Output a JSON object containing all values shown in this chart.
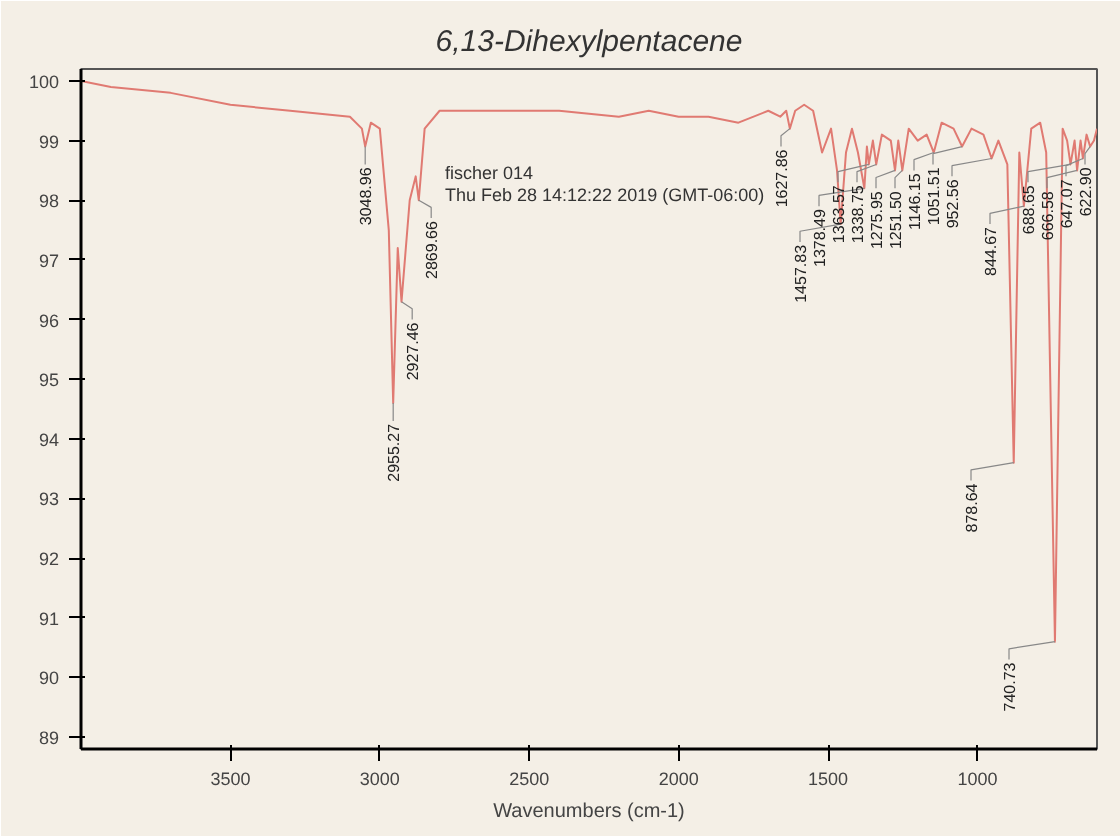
{
  "chart_data": {
    "type": "line",
    "title": "6,13-Dihexylpentacene",
    "xlabel": "Wavenumbers (cm-1)",
    "xlim": [
      4000,
      600
    ],
    "ylim": [
      88.8,
      100.2
    ],
    "xticks": [
      3500,
      3000,
      2500,
      2000,
      1500,
      1000
    ],
    "yticks": [
      89,
      90,
      91,
      92,
      93,
      94,
      95,
      96,
      97,
      98,
      99,
      100
    ],
    "grid": false,
    "marker": "none",
    "line_style": "solid",
    "series": [
      {
        "color": "#e07a72",
        "x": [
          4000,
          3900,
          3700,
          3500,
          3300,
          3100,
          3060,
          3048.96,
          3030,
          3000,
          2970,
          2955.27,
          2940,
          2927.46,
          2900,
          2880,
          2869.66,
          2850,
          2800,
          2600,
          2400,
          2200,
          2100,
          2000,
          1900,
          1800,
          1700,
          1660,
          1640,
          1627.86,
          1610,
          1580,
          1550,
          1520,
          1490,
          1470,
          1457.83,
          1440,
          1420,
          1400,
          1378.49,
          1370,
          1363.57,
          1350,
          1338.75,
          1320,
          1290,
          1275.95,
          1265,
          1251.5,
          1230,
          1200,
          1170,
          1146.15,
          1120,
          1080,
          1051.51,
          1020,
          980,
          952.56,
          930,
          900,
          878.64,
          860,
          844.67,
          820,
          790,
          770,
          740.73,
          715,
          700,
          688.65,
          675,
          666.58,
          655,
          647.07,
          635,
          622.9,
          610,
          600
        ],
        "values": [
          100.0,
          99.9,
          99.8,
          99.6,
          99.5,
          99.4,
          99.2,
          98.9,
          99.3,
          99.2,
          97.5,
          94.6,
          97.2,
          96.3,
          98.0,
          98.4,
          98.0,
          99.2,
          99.5,
          99.5,
          99.5,
          99.4,
          99.5,
          99.4,
          99.4,
          99.3,
          99.5,
          99.4,
          99.5,
          99.2,
          99.5,
          99.6,
          99.5,
          98.8,
          99.2,
          98.5,
          97.6,
          98.8,
          99.2,
          98.8,
          98.2,
          98.9,
          98.6,
          99.0,
          98.6,
          99.1,
          99.0,
          98.5,
          99.0,
          98.5,
          99.2,
          99.0,
          99.1,
          98.8,
          99.3,
          99.2,
          98.9,
          99.2,
          99.1,
          98.7,
          99.0,
          98.6,
          93.6,
          98.8,
          97.9,
          99.2,
          99.3,
          98.8,
          90.6,
          99.2,
          99.0,
          98.6,
          99.0,
          98.5,
          99.0,
          98.7,
          99.1,
          98.9,
          99.0,
          99.2
        ]
      }
    ],
    "annotations": [
      "fischer 014",
      "Thu Feb 28 14:12:22 2019 (GMT-06:00)",
      {
        "text": "3048.96",
        "x": 3048.96,
        "y": 98.9
      },
      {
        "text": "2955.27",
        "x": 2955.27,
        "y": 94.6
      },
      {
        "text": "2927.46",
        "x": 2927.46,
        "y": 96.3
      },
      {
        "text": "2869.66",
        "x": 2869.66,
        "y": 98.0
      },
      {
        "text": "1627.86",
        "x": 1627.86,
        "y": 99.2
      },
      {
        "text": "1457.83",
        "x": 1457.83,
        "y": 97.6
      },
      {
        "text": "1378.49",
        "x": 1378.49,
        "y": 98.2
      },
      {
        "text": "1363.57",
        "x": 1363.57,
        "y": 98.6
      },
      {
        "text": "1338.75",
        "x": 1338.75,
        "y": 98.6
      },
      {
        "text": "1275.95",
        "x": 1275.95,
        "y": 98.5
      },
      {
        "text": "1251.50",
        "x": 1251.5,
        "y": 98.5
      },
      {
        "text": "1146.15",
        "x": 1146.15,
        "y": 98.8
      },
      {
        "text": "1051.51",
        "x": 1051.51,
        "y": 98.9
      },
      {
        "text": "952.56",
        "x": 952.56,
        "y": 98.7
      },
      {
        "text": "878.64",
        "x": 878.64,
        "y": 93.6
      },
      {
        "text": "844.67",
        "x": 844.67,
        "y": 97.9
      },
      {
        "text": "740.73",
        "x": 740.73,
        "y": 90.6
      },
      {
        "text": "688.65",
        "x": 688.65,
        "y": 98.6
      },
      {
        "text": "666.58",
        "x": 666.58,
        "y": 98.5
      },
      {
        "text": "647.07",
        "x": 647.07,
        "y": 98.7
      },
      {
        "text": "622.90",
        "x": 622.9,
        "y": 98.9
      }
    ]
  }
}
